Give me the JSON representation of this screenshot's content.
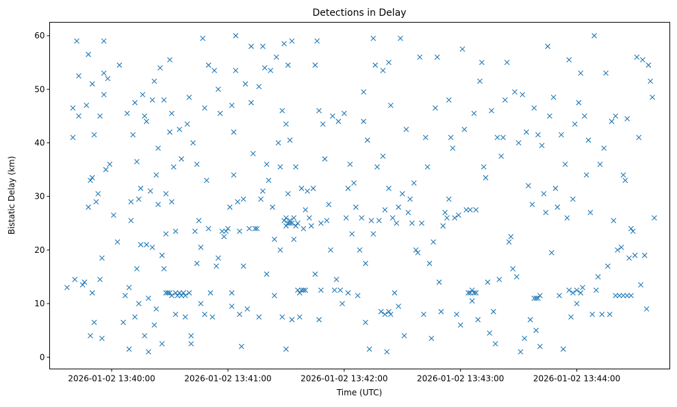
{
  "chart_data": {
    "type": "scatter",
    "title": "Detections in Delay",
    "xlabel": "Time (UTC)",
    "ylabel": "Bistatic Delay (km)",
    "x_units": "seconds relative to 2026-01-02 13:40:00",
    "xlim": [
      -32,
      288
    ],
    "ylim": [
      -2.2,
      62.5
    ],
    "x_ticks": [
      0,
      60,
      120,
      180,
      240
    ],
    "x_tick_labels": [
      "2026-01-02 13:40:00",
      "2026-01-02 13:41:00",
      "2026-01-02 13:42:00",
      "2026-01-02 13:43:00",
      "2026-01-02 13:44:00"
    ],
    "y_ticks": [
      0,
      10,
      20,
      30,
      40,
      50,
      60
    ],
    "y_tick_labels": [
      "0",
      "10",
      "20",
      "30",
      "40",
      "50",
      "60"
    ],
    "grid": false,
    "marker": "x",
    "color": "#1f77b4",
    "points": [
      [
        -23,
        13
      ],
      [
        -20,
        46.5
      ],
      [
        -20,
        41
      ],
      [
        -19,
        14.5
      ],
      [
        -18,
        59
      ],
      [
        -17,
        52.5
      ],
      [
        -17,
        45
      ],
      [
        -15,
        13.5
      ],
      [
        -14,
        14
      ],
      [
        -13,
        47
      ],
      [
        -12,
        56.5
      ],
      [
        -12,
        28
      ],
      [
        -11,
        33
      ],
      [
        -11,
        4
      ],
      [
        -10,
        51
      ],
      [
        -10,
        33.5
      ],
      [
        -10,
        12
      ],
      [
        -9,
        6.5
      ],
      [
        -9,
        41.5
      ],
      [
        -8,
        29
      ],
      [
        -7,
        30.5
      ],
      [
        -6,
        14.5
      ],
      [
        -6,
        45
      ],
      [
        -5,
        18.5
      ],
      [
        -5,
        3.5
      ],
      [
        -4,
        59
      ],
      [
        -4,
        53
      ],
      [
        -4,
        49
      ],
      [
        -3,
        35
      ],
      [
        -2,
        52
      ],
      [
        -1,
        36
      ],
      [
        1,
        26.5
      ],
      [
        3,
        21.5
      ],
      [
        4,
        54.5
      ],
      [
        6,
        6.5
      ],
      [
        7,
        11.5
      ],
      [
        8,
        45.5
      ],
      [
        9,
        13
      ],
      [
        9,
        1.5
      ],
      [
        10,
        25.5
      ],
      [
        10,
        29
      ],
      [
        11,
        41.5
      ],
      [
        12,
        47.5
      ],
      [
        12,
        7.5
      ],
      [
        13,
        36.5
      ],
      [
        13,
        16.5
      ],
      [
        14,
        29.5
      ],
      [
        14,
        10
      ],
      [
        15,
        21
      ],
      [
        15,
        31.5
      ],
      [
        16,
        49
      ],
      [
        17,
        45
      ],
      [
        17,
        4
      ],
      [
        18,
        44
      ],
      [
        18,
        21
      ],
      [
        19,
        11
      ],
      [
        19,
        1
      ],
      [
        20,
        31
      ],
      [
        21,
        20.5
      ],
      [
        21,
        48
      ],
      [
        22,
        6
      ],
      [
        22,
        51.5
      ],
      [
        23,
        9
      ],
      [
        23,
        34
      ],
      [
        24,
        39
      ],
      [
        24,
        28.5
      ],
      [
        25,
        54
      ],
      [
        26,
        19
      ],
      [
        26,
        2.5
      ],
      [
        27,
        48
      ],
      [
        27,
        16.5
      ],
      [
        28,
        30.5
      ],
      [
        28,
        23
      ],
      [
        28,
        12
      ],
      [
        29,
        12
      ],
      [
        30,
        55.5
      ],
      [
        30,
        42
      ],
      [
        30,
        12
      ],
      [
        31,
        11.5
      ],
      [
        31,
        45.5
      ],
      [
        31,
        29
      ],
      [
        32,
        35.5
      ],
      [
        33,
        8
      ],
      [
        33,
        23.5
      ],
      [
        33,
        12
      ],
      [
        34,
        11.5
      ],
      [
        35,
        42.5
      ],
      [
        35,
        12
      ],
      [
        36,
        37
      ],
      [
        36,
        11.5
      ],
      [
        37,
        12
      ],
      [
        38,
        11.5
      ],
      [
        38,
        7.5
      ],
      [
        39,
        43.5
      ],
      [
        40,
        48.5
      ],
      [
        40,
        12
      ],
      [
        41,
        2.5
      ],
      [
        41,
        4
      ],
      [
        42,
        40
      ],
      [
        43,
        23.5
      ],
      [
        44,
        36
      ],
      [
        44,
        17.5
      ],
      [
        45,
        25.5
      ],
      [
        46,
        10
      ],
      [
        46,
        20.5
      ],
      [
        47,
        59.5
      ],
      [
        48,
        46.5
      ],
      [
        48,
        8
      ],
      [
        49,
        33
      ],
      [
        50,
        54.5
      ],
      [
        50,
        24
      ],
      [
        51,
        12
      ],
      [
        52,
        7.5
      ],
      [
        53,
        53.5
      ],
      [
        54,
        17
      ],
      [
        55,
        18.5
      ],
      [
        55,
        50
      ],
      [
        56,
        45.5
      ],
      [
        57,
        23.5
      ],
      [
        58,
        22.5
      ],
      [
        59,
        23.5
      ],
      [
        60,
        24
      ],
      [
        61,
        28
      ],
      [
        62,
        47
      ],
      [
        62,
        12
      ],
      [
        62,
        9.5
      ],
      [
        63,
        42
      ],
      [
        63,
        34
      ],
      [
        64,
        60
      ],
      [
        64,
        53.5
      ],
      [
        65,
        29
      ],
      [
        66,
        23.5
      ],
      [
        66,
        8
      ],
      [
        67,
        2
      ],
      [
        68,
        29.5
      ],
      [
        68,
        17
      ],
      [
        69,
        51
      ],
      [
        70,
        9
      ],
      [
        71,
        24
      ],
      [
        72,
        58
      ],
      [
        72,
        47.5
      ],
      [
        73,
        38
      ],
      [
        74,
        24
      ],
      [
        75,
        24
      ],
      [
        76,
        50.5
      ],
      [
        76,
        7.5
      ],
      [
        77,
        29.5
      ],
      [
        78,
        58
      ],
      [
        78,
        31
      ],
      [
        79,
        54
      ],
      [
        80,
        36
      ],
      [
        80,
        15.5
      ],
      [
        81,
        33
      ],
      [
        82,
        53.5
      ],
      [
        83,
        28
      ],
      [
        84,
        22
      ],
      [
        84,
        11.5
      ],
      [
        85,
        56
      ],
      [
        86,
        40
      ],
      [
        87,
        35.5
      ],
      [
        87,
        20
      ],
      [
        88,
        46
      ],
      [
        88,
        7.5
      ],
      [
        89,
        58.5
      ],
      [
        89,
        25.5
      ],
      [
        90,
        43.5
      ],
      [
        90,
        1.5
      ],
      [
        90,
        26
      ],
      [
        90,
        24.5
      ],
      [
        91,
        54.5
      ],
      [
        91,
        30.5
      ],
      [
        91,
        25
      ],
      [
        92,
        40.5
      ],
      [
        92,
        25
      ],
      [
        92,
        25.5
      ],
      [
        93,
        59
      ],
      [
        93,
        7
      ],
      [
        93,
        25
      ],
      [
        94,
        22
      ],
      [
        94,
        26
      ],
      [
        95,
        35.5
      ],
      [
        95,
        24.5
      ],
      [
        96,
        25
      ],
      [
        96,
        12.5
      ],
      [
        97,
        7.5
      ],
      [
        97,
        12
      ],
      [
        98,
        31.5
      ],
      [
        98,
        12.5
      ],
      [
        99,
        24
      ],
      [
        99,
        12.5
      ],
      [
        100,
        27.5
      ],
      [
        100,
        12.5
      ],
      [
        101,
        31
      ],
      [
        102,
        26
      ],
      [
        103,
        24.5
      ],
      [
        104,
        31.5
      ],
      [
        105,
        54.5
      ],
      [
        105,
        15.5
      ],
      [
        106,
        59
      ],
      [
        107,
        46
      ],
      [
        107,
        7
      ],
      [
        108,
        12.5
      ],
      [
        108,
        25
      ],
      [
        109,
        43.5
      ],
      [
        110,
        37
      ],
      [
        111,
        25.5
      ],
      [
        112,
        28.5
      ],
      [
        113,
        20
      ],
      [
        114,
        45
      ],
      [
        115,
        12.5
      ],
      [
        116,
        14.5
      ],
      [
        117,
        44
      ],
      [
        118,
        12.5
      ],
      [
        119,
        10
      ],
      [
        120,
        45.5
      ],
      [
        121,
        26
      ],
      [
        122,
        31.5
      ],
      [
        122,
        12
      ],
      [
        123,
        36
      ],
      [
        124,
        23
      ],
      [
        125,
        32.5
      ],
      [
        126,
        28
      ],
      [
        127,
        11.5
      ],
      [
        128,
        20
      ],
      [
        129,
        26
      ],
      [
        130,
        49.5
      ],
      [
        130,
        44
      ],
      [
        131,
        17.5
      ],
      [
        131,
        6.5
      ],
      [
        132,
        40.5
      ],
      [
        133,
        1.5
      ],
      [
        134,
        25.5
      ],
      [
        135,
        59.5
      ],
      [
        135,
        23
      ],
      [
        136,
        54.5
      ],
      [
        137,
        35.5
      ],
      [
        138,
        25.5
      ],
      [
        139,
        8.5
      ],
      [
        140,
        37.5
      ],
      [
        140,
        53.5
      ],
      [
        141,
        27.5
      ],
      [
        141,
        8
      ],
      [
        142,
        1
      ],
      [
        143,
        55
      ],
      [
        143,
        31.5
      ],
      [
        143,
        8.5
      ],
      [
        144,
        47
      ],
      [
        144,
        8
      ],
      [
        145,
        26
      ],
      [
        146,
        12
      ],
      [
        147,
        25
      ],
      [
        148,
        28
      ],
      [
        148,
        9.5
      ],
      [
        149,
        59.5
      ],
      [
        150,
        30.5
      ],
      [
        151,
        4
      ],
      [
        152,
        42.5
      ],
      [
        153,
        27
      ],
      [
        154,
        29.5
      ],
      [
        155,
        25
      ],
      [
        156,
        32.5
      ],
      [
        157,
        20
      ],
      [
        158,
        19.5
      ],
      [
        159,
        56
      ],
      [
        160,
        25
      ],
      [
        161,
        8
      ],
      [
        162,
        41
      ],
      [
        163,
        35.5
      ],
      [
        164,
        17.5
      ],
      [
        165,
        3.5
      ],
      [
        166,
        21.5
      ],
      [
        167,
        46.5
      ],
      [
        168,
        56
      ],
      [
        169,
        14
      ],
      [
        170,
        8.5
      ],
      [
        171,
        24.5
      ],
      [
        172,
        27
      ],
      [
        173,
        26
      ],
      [
        174,
        29.5
      ],
      [
        174,
        48
      ],
      [
        175,
        41
      ],
      [
        176,
        39
      ],
      [
        177,
        26
      ],
      [
        178,
        8
      ],
      [
        179,
        26.5
      ],
      [
        180,
        6
      ],
      [
        181,
        57.5
      ],
      [
        182,
        42.5
      ],
      [
        183,
        27.5
      ],
      [
        184,
        12
      ],
      [
        185,
        12
      ],
      [
        186,
        12.5
      ],
      [
        187,
        12
      ],
      [
        188,
        12
      ],
      [
        185,
        27.5
      ],
      [
        186,
        10.5
      ],
      [
        187,
        45.5
      ],
      [
        188,
        27.5
      ],
      [
        189,
        7
      ],
      [
        190,
        51.5
      ],
      [
        191,
        55
      ],
      [
        192,
        35.5
      ],
      [
        193,
        33.5
      ],
      [
        194,
        14
      ],
      [
        195,
        4.5
      ],
      [
        196,
        46
      ],
      [
        197,
        8.5
      ],
      [
        198,
        2.5
      ],
      [
        199,
        41
      ],
      [
        200,
        14.5
      ],
      [
        201,
        37.5
      ],
      [
        202,
        41
      ],
      [
        203,
        48
      ],
      [
        204,
        55
      ],
      [
        205,
        21.5
      ],
      [
        206,
        22.5
      ],
      [
        207,
        16.5
      ],
      [
        208,
        49.5
      ],
      [
        209,
        15
      ],
      [
        210,
        40
      ],
      [
        211,
        1
      ],
      [
        212,
        49
      ],
      [
        213,
        3.5
      ],
      [
        214,
        42
      ],
      [
        215,
        32
      ],
      [
        216,
        7
      ],
      [
        217,
        28.5
      ],
      [
        218,
        46.5
      ],
      [
        218,
        11
      ],
      [
        219,
        11
      ],
      [
        219,
        5
      ],
      [
        220,
        41.5
      ],
      [
        220,
        11
      ],
      [
        221,
        11.5
      ],
      [
        221,
        2
      ],
      [
        222,
        39.5
      ],
      [
        223,
        30.5
      ],
      [
        224,
        27
      ],
      [
        225,
        58
      ],
      [
        226,
        45
      ],
      [
        227,
        19.5
      ],
      [
        228,
        48.5
      ],
      [
        229,
        31.5
      ],
      [
        230,
        28
      ],
      [
        231,
        11.5
      ],
      [
        232,
        41.5
      ],
      [
        233,
        1.5
      ],
      [
        234,
        36
      ],
      [
        235,
        26
      ],
      [
        236,
        55.5
      ],
      [
        236,
        12.5
      ],
      [
        237,
        7.5
      ],
      [
        238,
        29.5
      ],
      [
        238,
        12
      ],
      [
        239,
        43.5
      ],
      [
        240,
        10
      ],
      [
        240,
        12.5
      ],
      [
        241,
        47.5
      ],
      [
        242,
        53
      ],
      [
        242,
        12
      ],
      [
        243,
        13
      ],
      [
        244,
        45
      ],
      [
        245,
        34
      ],
      [
        246,
        40.5
      ],
      [
        247,
        27
      ],
      [
        248,
        8
      ],
      [
        249,
        60
      ],
      [
        250,
        12.5
      ],
      [
        251,
        15
      ],
      [
        252,
        36
      ],
      [
        253,
        8
      ],
      [
        254,
        39
      ],
      [
        255,
        53
      ],
      [
        256,
        17
      ],
      [
        257,
        8
      ],
      [
        258,
        44
      ],
      [
        259,
        25.5
      ],
      [
        260,
        45
      ],
      [
        260,
        11.5
      ],
      [
        261,
        20
      ],
      [
        262,
        11.5
      ],
      [
        263,
        20.5
      ],
      [
        264,
        34
      ],
      [
        264,
        11.5
      ],
      [
        265,
        33
      ],
      [
        266,
        44.5
      ],
      [
        266,
        11.5
      ],
      [
        267,
        18.5
      ],
      [
        268,
        24
      ],
      [
        268,
        11.5
      ],
      [
        269,
        23.5
      ],
      [
        270,
        19
      ],
      [
        271,
        56
      ],
      [
        272,
        41
      ],
      [
        273,
        13.5
      ],
      [
        274,
        55.5
      ],
      [
        275,
        19
      ],
      [
        276,
        9
      ],
      [
        277,
        54.5
      ],
      [
        278,
        51.5
      ],
      [
        279,
        48.5
      ],
      [
        280,
        26
      ]
    ]
  }
}
